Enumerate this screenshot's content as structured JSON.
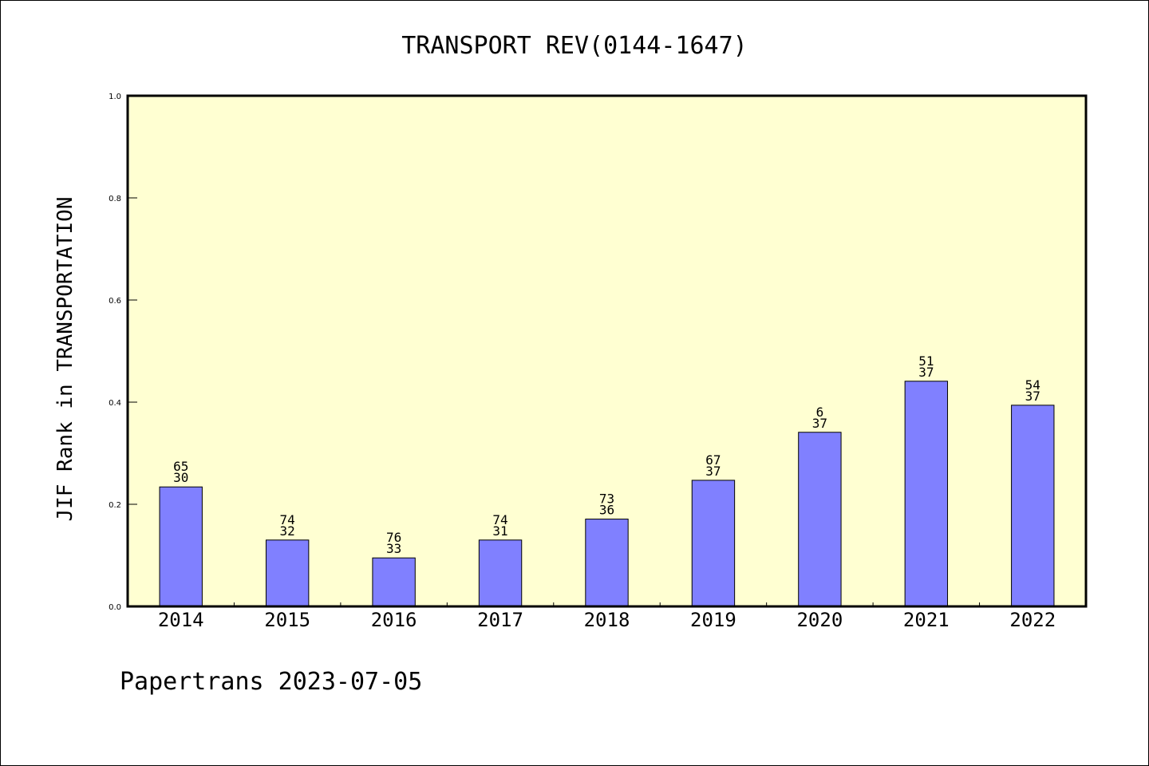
{
  "chart_data": {
    "type": "bar",
    "title": "TRANSPORT REV(0144-1647)",
    "ylabel": "JIF Rank in TRANSPORTATION",
    "xlabel": "",
    "ylim": [
      0,
      1.0
    ],
    "yticks": [
      "0.0",
      "0.2",
      "0.4",
      "0.6",
      "0.8",
      "1.0"
    ],
    "categories": [
      "2014",
      "2015",
      "2016",
      "2017",
      "2018",
      "2019",
      "2020",
      "2021",
      "2022"
    ],
    "values": [
      0.234,
      0.13,
      0.095,
      0.13,
      0.171,
      0.247,
      0.341,
      0.441,
      0.394
    ],
    "labels_top": [
      "65",
      "74",
      "76",
      "74",
      "73",
      "67",
      "6",
      "51",
      "54"
    ],
    "labels_bottom": [
      "30",
      "32",
      "33",
      "31",
      "36",
      "37",
      "37",
      "37",
      "37"
    ],
    "grid": false,
    "colors": {
      "bar": "#8080ff",
      "plot_bg": "#ffffd2"
    }
  },
  "footer": "Papertrans 2023-07-05"
}
